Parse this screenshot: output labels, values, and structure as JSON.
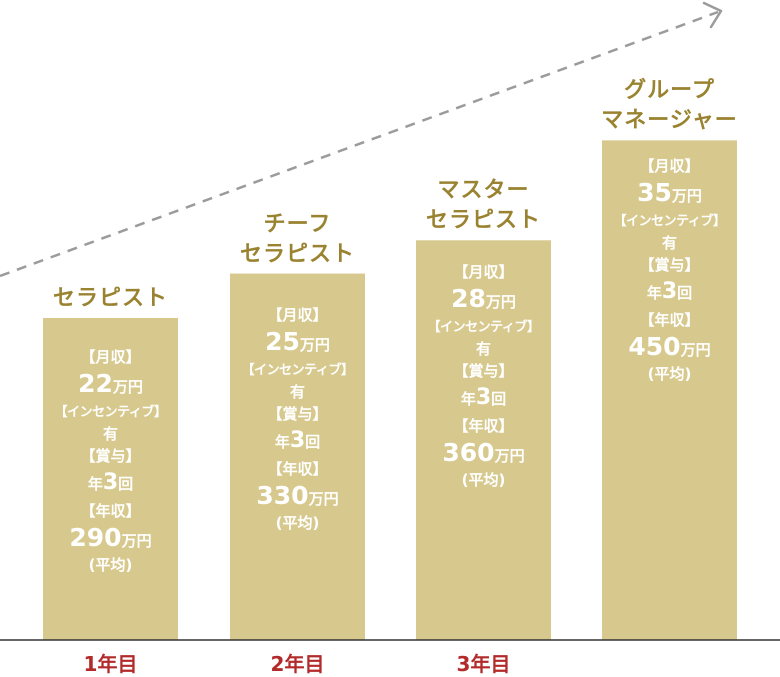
{
  "colors": {
    "bar": "#d7c98e",
    "bar_text": "#ffffff",
    "title": "#9a8330",
    "category": "#b22a2a",
    "axis": "#333333",
    "arrow": "#9b9b9b"
  },
  "chart_data": {
    "type": "bar",
    "trend_arrow": "dashed-up-right",
    "categories": [
      "1年目",
      "2年目",
      "3年目",
      ""
    ],
    "bars": [
      {
        "title_lines": [
          "セラピスト"
        ],
        "monthly_label": "【月収】",
        "monthly_value": "22",
        "monthly_unit": "万円",
        "incentive_label": "【インセンティブ】",
        "incentive_value": "有",
        "bonus_label": "【賞与】",
        "bonus_prefix": "年",
        "bonus_count": "3",
        "bonus_suffix": "回",
        "annual_label": "【年収】",
        "annual_value": "290",
        "annual_unit": "万円",
        "annual_note": "(平均)"
      },
      {
        "title_lines": [
          "チーフ",
          "セラピスト"
        ],
        "monthly_label": "【月収】",
        "monthly_value": "25",
        "monthly_unit": "万円",
        "incentive_label": "【インセンティブ】",
        "incentive_value": "有",
        "bonus_label": "【賞与】",
        "bonus_prefix": "年",
        "bonus_count": "3",
        "bonus_suffix": "回",
        "annual_label": "【年収】",
        "annual_value": "330",
        "annual_unit": "万円",
        "annual_note": "(平均)"
      },
      {
        "title_lines": [
          "マスター",
          "セラピスト"
        ],
        "monthly_label": "【月収】",
        "monthly_value": "28",
        "monthly_unit": "万円",
        "incentive_label": "【インセンティブ】",
        "incentive_value": "有",
        "bonus_label": "【賞与】",
        "bonus_prefix": "年",
        "bonus_count": "3",
        "bonus_suffix": "回",
        "annual_label": "【年収】",
        "annual_value": "360",
        "annual_unit": "万円",
        "annual_note": "(平均)"
      },
      {
        "title_lines": [
          "グループ",
          "マネージャー"
        ],
        "monthly_label": "【月収】",
        "monthly_value": "35",
        "monthly_unit": "万円",
        "incentive_label": "【インセンティブ】",
        "incentive_value": "有",
        "bonus_label": "【賞与】",
        "bonus_prefix": "年",
        "bonus_count": "3",
        "bonus_suffix": "回",
        "annual_label": "【年収】",
        "annual_value": "450",
        "annual_unit": "万円",
        "annual_note": "(平均)"
      }
    ],
    "values": [
      290,
      330,
      360,
      450
    ],
    "ylim": [
      0,
      510
    ]
  }
}
